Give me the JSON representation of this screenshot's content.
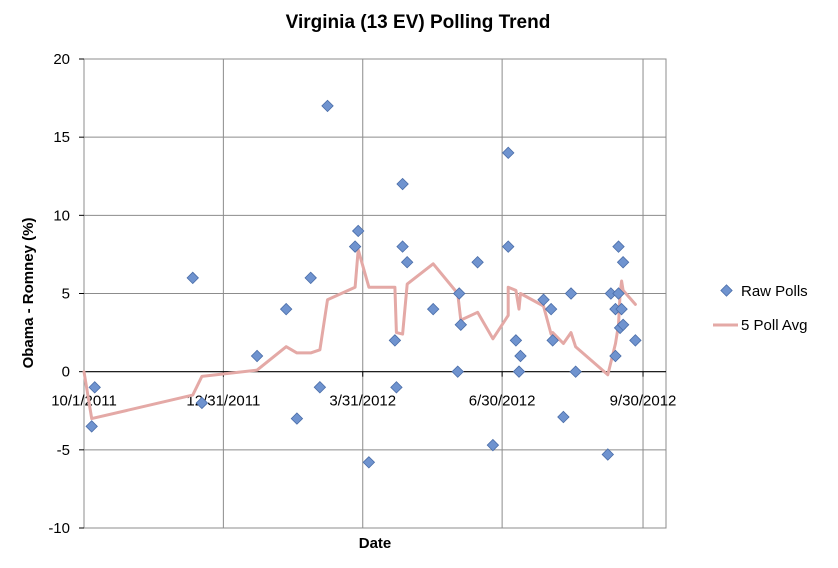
{
  "chart_data": {
    "type": "scatter",
    "title": "Virginia (13 EV) Polling Trend",
    "xlabel": "Date",
    "ylabel": "Obama - Romney (%)",
    "xlim": [
      "2011-10-01",
      "2012-10-15"
    ],
    "ylim": [
      -10,
      20
    ],
    "yticks": [
      20,
      15,
      10,
      5,
      0,
      -5,
      -10
    ],
    "xticks": [
      {
        "date": "2011-10-01",
        "label": "10/1/2011"
      },
      {
        "date": "2011-12-31",
        "label": "12/31/2011"
      },
      {
        "date": "2012-03-31",
        "label": "3/31/2012"
      },
      {
        "date": "2012-06-30",
        "label": "6/30/2012"
      },
      {
        "date": "2012-09-30",
        "label": "9/30/2012"
      }
    ],
    "grid": true,
    "legend_position": "right",
    "colors": {
      "raw_polls": "#6f93cf",
      "raw_polls_edge": "#4a6da8",
      "avg": "#e4a9a6",
      "grid": "#8c8c8c"
    },
    "series": [
      {
        "name": "Raw Polls",
        "kind": "scatter",
        "points": [
          {
            "x": "2011-10-08",
            "y": -1
          },
          {
            "x": "2011-10-06",
            "y": -3.5
          },
          {
            "x": "2011-12-11",
            "y": 6
          },
          {
            "x": "2011-12-17",
            "y": -2
          },
          {
            "x": "2012-01-22",
            "y": 1
          },
          {
            "x": "2012-02-10",
            "y": 4
          },
          {
            "x": "2012-02-17",
            "y": -3
          },
          {
            "x": "2012-02-26",
            "y": 6
          },
          {
            "x": "2012-03-03",
            "y": -1
          },
          {
            "x": "2012-03-08",
            "y": 17
          },
          {
            "x": "2012-03-26",
            "y": 8
          },
          {
            "x": "2012-03-28",
            "y": 9
          },
          {
            "x": "2012-04-04",
            "y": -5.8
          },
          {
            "x": "2012-04-21",
            "y": 2
          },
          {
            "x": "2012-04-22",
            "y": -1
          },
          {
            "x": "2012-04-26",
            "y": 8
          },
          {
            "x": "2012-04-26",
            "y": 12
          },
          {
            "x": "2012-04-29",
            "y": 7
          },
          {
            "x": "2012-05-16",
            "y": 4
          },
          {
            "x": "2012-06-01",
            "y": 0
          },
          {
            "x": "2012-06-02",
            "y": 5
          },
          {
            "x": "2012-06-03",
            "y": 3
          },
          {
            "x": "2012-06-14",
            "y": 7
          },
          {
            "x": "2012-06-24",
            "y": -4.7
          },
          {
            "x": "2012-07-04",
            "y": 14
          },
          {
            "x": "2012-07-04",
            "y": 8
          },
          {
            "x": "2012-07-09",
            "y": 2
          },
          {
            "x": "2012-07-11",
            "y": 0
          },
          {
            "x": "2012-07-12",
            "y": 1
          },
          {
            "x": "2012-07-27",
            "y": 4.6
          },
          {
            "x": "2012-08-01",
            "y": 4
          },
          {
            "x": "2012-08-02",
            "y": 2
          },
          {
            "x": "2012-08-09",
            "y": -2.9
          },
          {
            "x": "2012-08-14",
            "y": 5
          },
          {
            "x": "2012-08-17",
            "y": 0
          },
          {
            "x": "2012-09-07",
            "y": -5.3
          },
          {
            "x": "2012-09-09",
            "y": 5
          },
          {
            "x": "2012-09-12",
            "y": 1
          },
          {
            "x": "2012-09-12",
            "y": 4
          },
          {
            "x": "2012-09-14",
            "y": 8
          },
          {
            "x": "2012-09-14",
            "y": 5
          },
          {
            "x": "2012-09-15",
            "y": 2.8
          },
          {
            "x": "2012-09-16",
            "y": 4
          },
          {
            "x": "2012-09-17",
            "y": 7
          },
          {
            "x": "2012-09-17",
            "y": 3
          },
          {
            "x": "2012-09-25",
            "y": 2
          }
        ]
      },
      {
        "name": "5 Poll Avg",
        "kind": "line",
        "points": [
          {
            "x": "2011-10-01",
            "y": 0
          },
          {
            "x": "2011-10-06",
            "y": -3
          },
          {
            "x": "2011-12-11",
            "y": -1.5
          },
          {
            "x": "2011-12-17",
            "y": -0.3
          },
          {
            "x": "2012-01-22",
            "y": 0.1
          },
          {
            "x": "2012-02-10",
            "y": 1.6
          },
          {
            "x": "2012-02-17",
            "y": 1.2
          },
          {
            "x": "2012-02-26",
            "y": 1.2
          },
          {
            "x": "2012-03-03",
            "y": 1.4
          },
          {
            "x": "2012-03-08",
            "y": 4.6
          },
          {
            "x": "2012-03-26",
            "y": 5.4
          },
          {
            "x": "2012-03-28",
            "y": 7.8
          },
          {
            "x": "2012-04-04",
            "y": 5.4
          },
          {
            "x": "2012-04-21",
            "y": 5.4
          },
          {
            "x": "2012-04-22",
            "y": 2.5
          },
          {
            "x": "2012-04-26",
            "y": 2.4
          },
          {
            "x": "2012-04-29",
            "y": 5.6
          },
          {
            "x": "2012-05-16",
            "y": 6.9
          },
          {
            "x": "2012-06-01",
            "y": 5
          },
          {
            "x": "2012-06-03",
            "y": 3.3
          },
          {
            "x": "2012-06-14",
            "y": 3.8
          },
          {
            "x": "2012-06-24",
            "y": 2.1
          },
          {
            "x": "2012-07-04",
            "y": 3.6
          },
          {
            "x": "2012-07-04",
            "y": 5.4
          },
          {
            "x": "2012-07-09",
            "y": 5.2
          },
          {
            "x": "2012-07-11",
            "y": 4
          },
          {
            "x": "2012-07-12",
            "y": 5
          },
          {
            "x": "2012-07-27",
            "y": 4.2
          },
          {
            "x": "2012-08-01",
            "y": 2.4
          },
          {
            "x": "2012-08-02",
            "y": 2.5
          },
          {
            "x": "2012-08-09",
            "y": 1.8
          },
          {
            "x": "2012-08-14",
            "y": 2.5
          },
          {
            "x": "2012-08-17",
            "y": 1.6
          },
          {
            "x": "2012-09-07",
            "y": -0.2
          },
          {
            "x": "2012-09-12",
            "y": 1.8
          },
          {
            "x": "2012-09-14",
            "y": 3
          },
          {
            "x": "2012-09-15",
            "y": 5
          },
          {
            "x": "2012-09-16",
            "y": 5.8
          },
          {
            "x": "2012-09-17",
            "y": 5.2
          },
          {
            "x": "2012-09-25",
            "y": 4.3
          }
        ]
      }
    ]
  }
}
